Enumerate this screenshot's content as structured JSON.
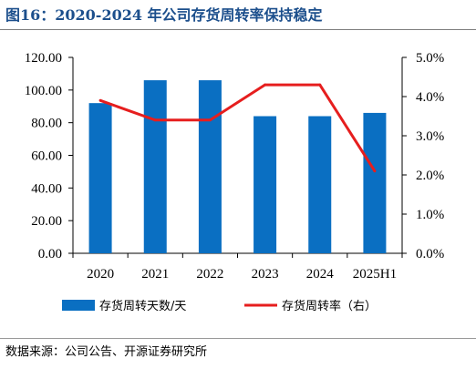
{
  "title": "图16：2020-2024 年公司存货周转率保持稳定",
  "source": "数据来源：公司公告、开源证券研究所",
  "colors": {
    "bar": "#0a6fc2",
    "line": "#e61e1e",
    "title": "#1c4f8c"
  },
  "chart_data": {
    "type": "bar",
    "categories": [
      "2020",
      "2021",
      "2022",
      "2023",
      "2024",
      "2025H1"
    ],
    "series": [
      {
        "name": "存货周转天数/天",
        "type": "bar",
        "axis": "left",
        "values": [
          92,
          106,
          106,
          84,
          84,
          86
        ]
      },
      {
        "name": "存货周转率（右）",
        "type": "line",
        "axis": "right",
        "values": [
          3.9,
          3.4,
          3.4,
          4.3,
          4.3,
          2.1
        ]
      }
    ],
    "y_left": {
      "min": 0,
      "max": 120,
      "ticks": [
        "0.00",
        "20.00",
        "40.00",
        "60.00",
        "80.00",
        "100.00",
        "120.00"
      ]
    },
    "y_right": {
      "min": 0,
      "max": 5,
      "ticks": [
        "0.0%",
        "1.0%",
        "2.0%",
        "3.0%",
        "4.0%",
        "5.0%"
      ]
    },
    "grid": false,
    "legend_position": "bottom"
  }
}
